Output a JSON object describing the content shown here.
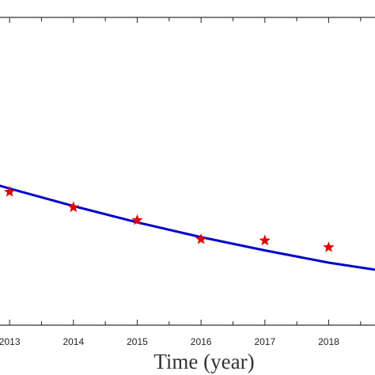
{
  "chart_data": {
    "type": "line",
    "xlabel": "Time (year)",
    "ylabel": "",
    "xlim": [
      2012.8,
      2018.8
    ],
    "ylim": [
      0,
      1
    ],
    "x_ticks": [
      2013,
      2014,
      2015,
      2016,
      2017,
      2018
    ],
    "grid": false,
    "series": [
      {
        "kind": "fitted-curve",
        "color": "#0000CC",
        "x": [
          2012.8,
          2013,
          2014,
          2015,
          2016,
          2017,
          2018,
          2018.8
        ],
        "values": [
          0.456,
          0.444,
          0.387,
          0.334,
          0.286,
          0.243,
          0.203,
          0.178
        ]
      },
      {
        "kind": "observed-points",
        "marker": "star",
        "color": "#E00000",
        "x": [
          2013,
          2014,
          2015,
          2016,
          2017,
          2018
        ],
        "values": [
          0.433,
          0.383,
          0.341,
          0.279,
          0.275,
          0.253
        ]
      }
    ]
  }
}
